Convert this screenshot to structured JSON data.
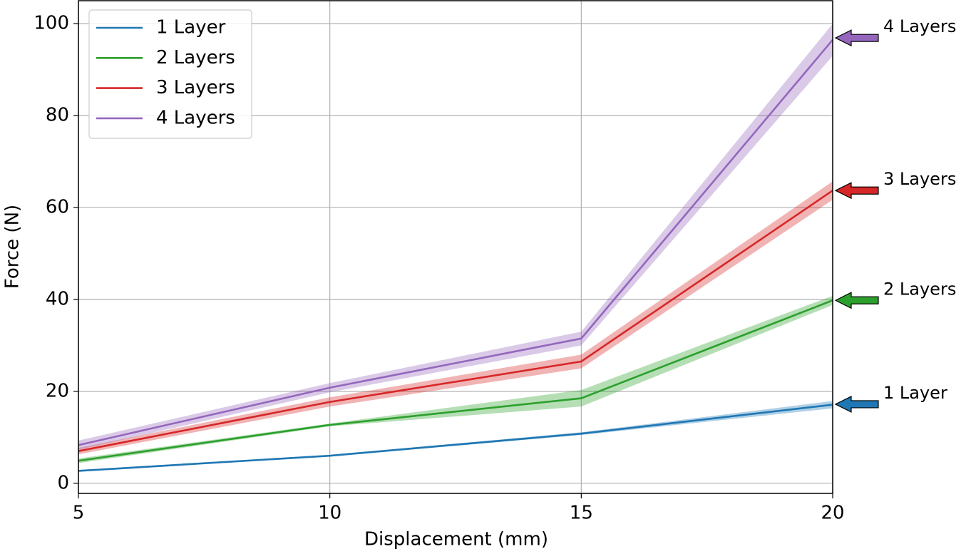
{
  "chart_data": {
    "type": "line",
    "xlabel": "Displacement (mm)",
    "ylabel": "Force (N)",
    "x": [
      5,
      10,
      15,
      20
    ],
    "series": [
      {
        "name": "1 Layer",
        "color": "#1f77b4",
        "values": [
          2.7,
          6.0,
          10.8,
          17.1
        ],
        "lower": [
          2.5,
          5.8,
          10.5,
          16.3
        ],
        "upper": [
          2.9,
          6.2,
          11.1,
          17.9
        ]
      },
      {
        "name": "2 Layers",
        "color": "#2ca02c",
        "values": [
          4.9,
          12.7,
          18.5,
          39.8
        ],
        "lower": [
          4.4,
          12.4,
          16.7,
          38.8
        ],
        "upper": [
          5.4,
          13.0,
          20.3,
          40.8
        ]
      },
      {
        "name": "3 Layers",
        "color": "#d62728",
        "values": [
          7.0,
          17.7,
          26.5,
          63.7
        ],
        "lower": [
          6.3,
          16.7,
          25.0,
          61.7
        ],
        "upper": [
          7.7,
          18.7,
          28.0,
          65.7
        ]
      },
      {
        "name": "4 Layers",
        "color": "#9467bd",
        "values": [
          8.3,
          20.8,
          31.5,
          96.5
        ],
        "lower": [
          7.3,
          19.8,
          30.0,
          93.0
        ],
        "upper": [
          9.3,
          21.8,
          33.0,
          100.0
        ]
      }
    ],
    "annotations": [
      {
        "text": "4 Layers",
        "y": 96.9,
        "color": "#9467bd"
      },
      {
        "text": "3 Layers",
        "y": 63.7,
        "color": "#d62728"
      },
      {
        "text": "2 Layers",
        "y": 39.8,
        "color": "#2ca02c"
      },
      {
        "text": "1 Layer",
        "y": 17.2,
        "color": "#1f77b4"
      }
    ],
    "xlim": [
      5,
      20
    ],
    "ylim": [
      -2.2,
      105
    ],
    "xticks": [
      5,
      10,
      15,
      20
    ],
    "yticks": [
      0,
      20,
      40,
      60,
      80,
      100
    ],
    "grid": true,
    "legend": "upper-left"
  }
}
